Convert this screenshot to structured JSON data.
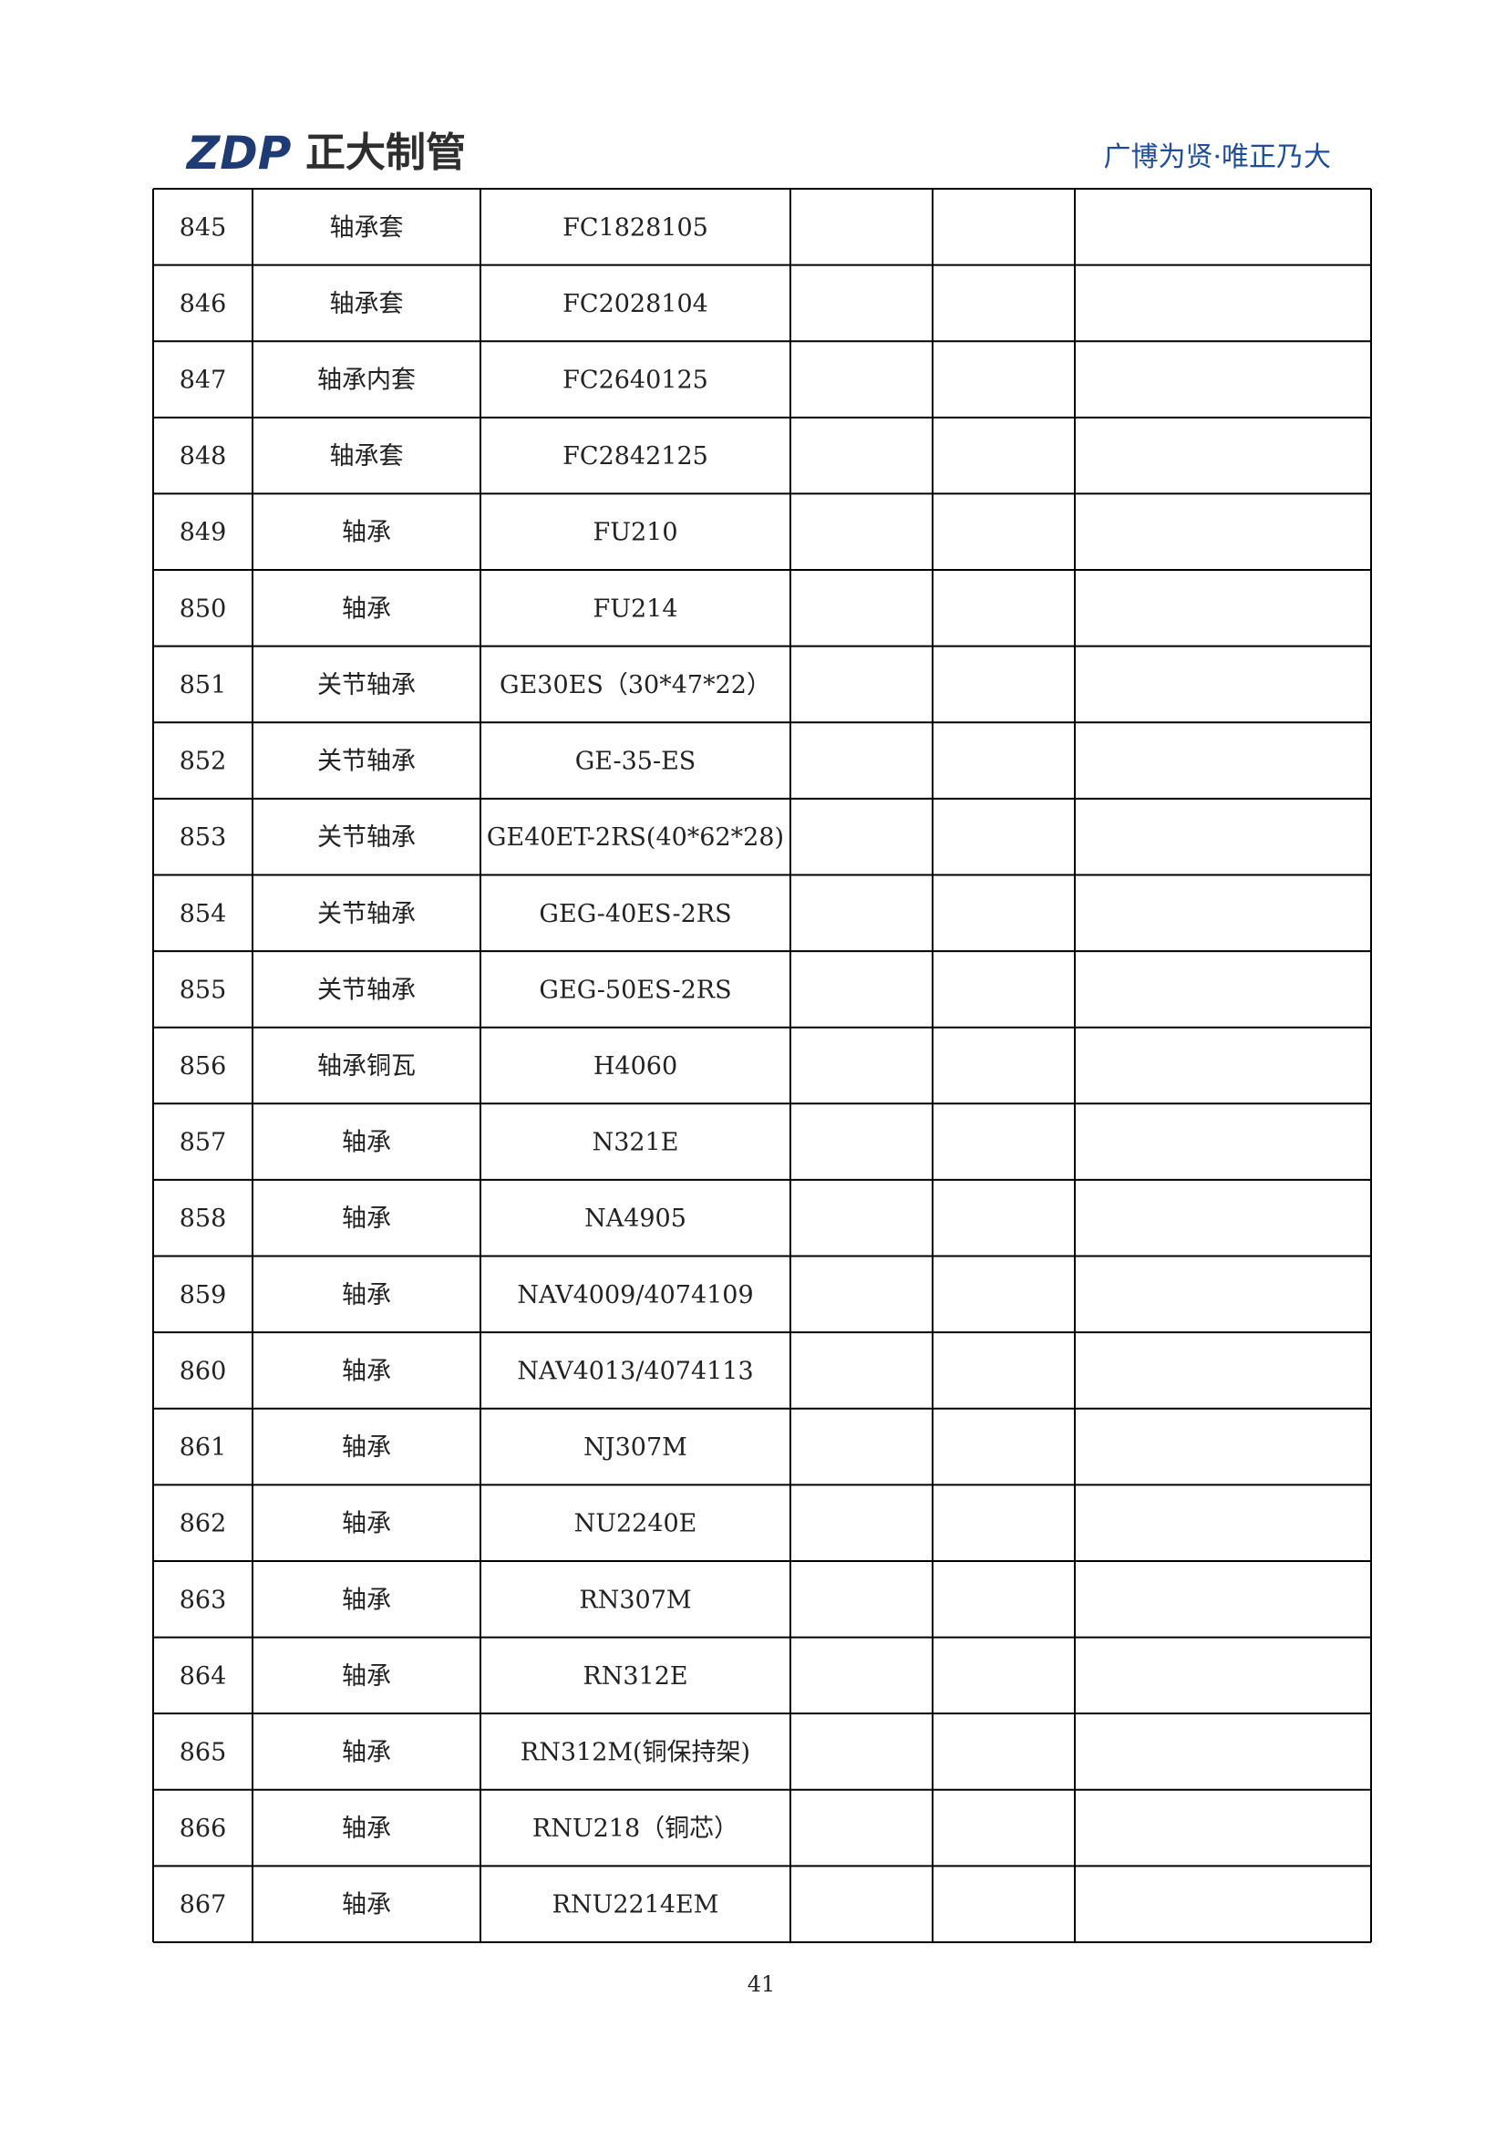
{
  "header": {
    "logo_text": "ZDP",
    "company": "正大制管",
    "slogan": "广博为贤·唯正乃大"
  },
  "table": {
    "rows": [
      [
        "845",
        "轴承套",
        "FC1828105"
      ],
      [
        "846",
        "轴承套",
        "FC2028104"
      ],
      [
        "847",
        "轴承内套",
        "FC2640125"
      ],
      [
        "848",
        "轴承套",
        "FC2842125"
      ],
      [
        "849",
        "轴承",
        "FU210"
      ],
      [
        "850",
        "轴承",
        "FU214"
      ],
      [
        "851",
        "关节轴承",
        "GE30ES（30*47*22）"
      ],
      [
        "852",
        "关节轴承",
        "GE-35-ES"
      ],
      [
        "853",
        "关节轴承",
        "GE40ET-2RS(40*62*28)"
      ],
      [
        "854",
        "关节轴承",
        "GEG-40ES-2RS"
      ],
      [
        "855",
        "关节轴承",
        "GEG-50ES-2RS"
      ],
      [
        "856",
        "轴承铜瓦",
        "H4060"
      ],
      [
        "857",
        "轴承",
        "N321E"
      ],
      [
        "858",
        "轴承",
        "NA4905"
      ],
      [
        "859",
        "轴承",
        "NAV4009/4074109"
      ],
      [
        "860",
        "轴承",
        "NAV4013/4074113"
      ],
      [
        "861",
        "轴承",
        "NJ307M"
      ],
      [
        "862",
        "轴承",
        "NU2240E"
      ],
      [
        "863",
        "轴承",
        "RN307M"
      ],
      [
        "864",
        "轴承",
        "RN312E"
      ],
      [
        "865",
        "轴承",
        "RN312M(铜保持架)"
      ],
      [
        "866",
        "轴承",
        "RNU218（铜芯）"
      ],
      [
        "867",
        "轴承",
        "RNU2214EM"
      ]
    ]
  },
  "page_number": "41"
}
